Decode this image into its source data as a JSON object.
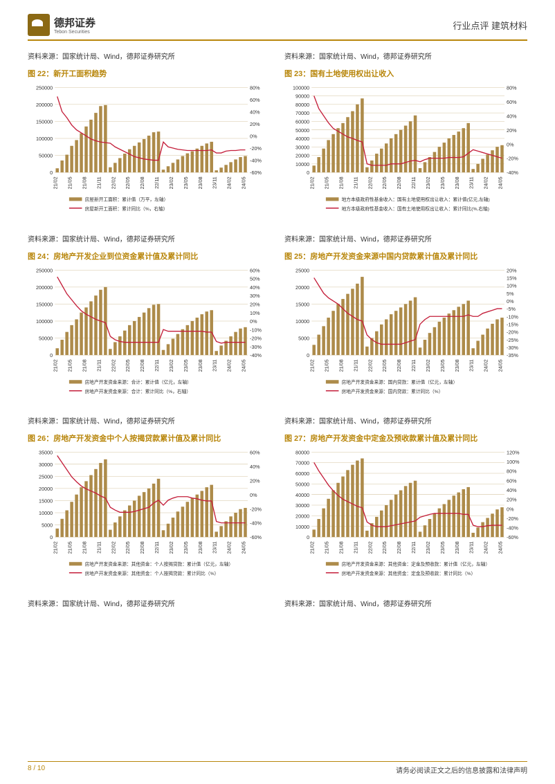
{
  "header": {
    "company": "德邦证券",
    "company_en": "Tebon Securities",
    "category": "行业点评  建筑材料"
  },
  "footer": {
    "page": "8 / 10",
    "disclaimer": "请务必阅读正文之后的信息披露和法律声明"
  },
  "source": "资料来源：国家统计局、Wind，德邦证券研究所",
  "charts": [
    {
      "id": "c22",
      "title": "图 22：新开工面积趋势",
      "left_max": 250000,
      "left_step": 50000,
      "right_max": 80,
      "right_min": -60,
      "right_step": 20,
      "legend": [
        "房屋新开工面积：累计值（万平，左轴）",
        "房屋新开工面积：累计同比（%，右轴）"
      ],
      "bars": [
        12000,
        35000,
        52000,
        78000,
        95000,
        115000,
        135000,
        155000,
        175000,
        195000,
        198000,
        15000,
        28000,
        42000,
        55000,
        68000,
        78000,
        88000,
        98000,
        108000,
        118000,
        120000,
        8000,
        18000,
        28000,
        38000,
        48000,
        56000,
        62000,
        70000,
        78000,
        85000,
        90000,
        6000,
        14000,
        22000,
        30000,
        38000,
        45000,
        48000
      ],
      "line": [
        65,
        40,
        30,
        18,
        10,
        5,
        0,
        -5,
        -8,
        -10,
        -11,
        -12,
        -18,
        -22,
        -26,
        -30,
        -34,
        -36,
        -38,
        -39,
        -40,
        -40,
        -10,
        -18,
        -20,
        -22,
        -23,
        -24,
        -24,
        -24,
        -24,
        -24,
        -23,
        -28,
        -28,
        -25,
        -24,
        -24,
        -23,
        -23
      ]
    },
    {
      "id": "c23",
      "title": "图 23：国有土地使用权出让收入",
      "left_max": 100000,
      "left_step": 10000,
      "right_max": 80,
      "right_min": -40,
      "right_step": 20,
      "legend": [
        "地方本级政府性基金收入：国有土地使用权出让收入：累计值(亿元,左轴)",
        "地方本级政府性基金收入：国有土地使用权出让收入：累计同比(%,右轴)"
      ],
      "bars": [
        8000,
        18000,
        28000,
        38000,
        45000,
        52000,
        58000,
        65000,
        72000,
        80000,
        87000,
        6000,
        14000,
        22000,
        28000,
        34000,
        40000,
        45000,
        50000,
        55000,
        60000,
        67000,
        5000,
        12000,
        18000,
        24000,
        30000,
        35000,
        40000,
        44000,
        48000,
        52000,
        58000,
        4000,
        10000,
        16000,
        21000,
        26000,
        30000,
        32000
      ],
      "line": [
        68,
        50,
        40,
        30,
        22,
        18,
        14,
        10,
        8,
        5,
        3,
        -28,
        -30,
        -30,
        -30,
        -30,
        -28,
        -28,
        -28,
        -26,
        -24,
        -23,
        -25,
        -22,
        -20,
        -20,
        -20,
        -20,
        -19,
        -19,
        -19,
        -18,
        -13,
        -8,
        -10,
        -12,
        -14,
        -16,
        -18,
        -20
      ]
    },
    {
      "id": "c24",
      "title": "图 24：房地产开发企业到位资金累计值及累计同比",
      "left_max": 250000,
      "left_step": 50000,
      "right_max": 60,
      "right_min": -40,
      "right_step": 10,
      "legend": [
        "房地产开发资金来源：合计：累计值（亿元，左轴）",
        "房地产开发资金来源：合计：累计同比（%，右轴）"
      ],
      "bars": [
        20000,
        45000,
        68000,
        88000,
        105000,
        125000,
        140000,
        158000,
        175000,
        192000,
        200000,
        18000,
        38000,
        55000,
        72000,
        88000,
        100000,
        112000,
        125000,
        138000,
        148000,
        150000,
        15000,
        32000,
        48000,
        62000,
        76000,
        88000,
        100000,
        110000,
        120000,
        128000,
        132000,
        12000,
        28000,
        42000,
        55000,
        68000,
        78000,
        82000
      ],
      "line": [
        52,
        42,
        32,
        25,
        18,
        12,
        8,
        5,
        2,
        0,
        -2,
        -18,
        -22,
        -24,
        -25,
        -25,
        -25,
        -25,
        -25,
        -25,
        -25,
        -25,
        -10,
        -12,
        -12,
        -12,
        -12,
        -12,
        -12,
        -12,
        -12,
        -13,
        -13,
        -24,
        -26,
        -25,
        -25,
        -25,
        -25,
        -25
      ]
    },
    {
      "id": "c25",
      "title": "图 25：房地产开发资金来源中国内贷款累计值及累计同比",
      "left_max": 25000,
      "left_step": 5000,
      "right_max": 20,
      "right_min": -35,
      "right_step": 5,
      "legend": [
        "房地产开发资金来源：国内贷款：累计值（亿元，左轴）",
        "房地产开发资金来源：国内贷款：累计同比（%）"
      ],
      "bars": [
        3000,
        6000,
        8500,
        11000,
        13000,
        15000,
        16500,
        18000,
        19500,
        21000,
        23000,
        2500,
        5000,
        7000,
        9000,
        10500,
        12000,
        13000,
        14000,
        15000,
        16000,
        17000,
        2200,
        4500,
        6500,
        8200,
        9800,
        11000,
        12200,
        13200,
        14200,
        15000,
        16000,
        2000,
        4200,
        6000,
        7800,
        9200,
        10500,
        11000
      ],
      "line": [
        15,
        10,
        5,
        2,
        0,
        -2,
        -5,
        -8,
        -10,
        -12,
        -13,
        -22,
        -25,
        -27,
        -28,
        -28,
        -28,
        -28,
        -28,
        -27,
        -26,
        -25,
        -15,
        -12,
        -10,
        -10,
        -10,
        -10,
        -10,
        -10,
        -10,
        -10,
        -9,
        -10,
        -10,
        -8,
        -7,
        -6,
        -5,
        -5
      ]
    },
    {
      "id": "c26",
      "title": "图 26：房地产开发资金中个人按揭贷款累计值及累计同比",
      "left_max": 35000,
      "left_step": 5000,
      "right_max": 60,
      "right_min": -60,
      "right_step": 20,
      "legend": [
        "房地产开发资金来源：其他资金：个人按揭贷款：累计值（亿元，左轴）",
        "房地产开发资金来源：其他资金：个人按揭贷款：累计同比（%）"
      ],
      "bars": [
        3500,
        7500,
        11000,
        14500,
        17500,
        20500,
        23000,
        25500,
        28000,
        30500,
        32000,
        3000,
        6000,
        8500,
        11000,
        13000,
        15000,
        17000,
        18500,
        20000,
        22000,
        24000,
        2800,
        5500,
        8000,
        10500,
        12500,
        14500,
        16000,
        17500,
        19000,
        20500,
        21500,
        2200,
        4500,
        6500,
        8500,
        10000,
        11500,
        12000
      ],
      "line": [
        55,
        45,
        35,
        25,
        18,
        12,
        8,
        5,
        2,
        -2,
        -5,
        -18,
        -22,
        -25,
        -25,
        -25,
        -24,
        -22,
        -20,
        -18,
        -12,
        -8,
        -15,
        -8,
        -5,
        -3,
        -3,
        -3,
        -5,
        -6,
        -8,
        -9,
        -9,
        -38,
        -40,
        -40,
        -40,
        -40,
        -40,
        -40
      ]
    },
    {
      "id": "c27",
      "title": "图 27：房地产开发资金中定金及预收款累计值及累计同比",
      "left_max": 80000,
      "left_step": 10000,
      "right_max": 120,
      "right_min": -60,
      "right_step": 20,
      "legend": [
        "房地产开发资金来源：其他资金：定金及预收款：累计值（亿元，左轴）",
        "房地产开发资金来源：其他资金：定金及预收款：累计同比（%）"
      ],
      "bars": [
        7000,
        17000,
        27000,
        36000,
        44000,
        51000,
        57000,
        63000,
        68000,
        72000,
        74000,
        6000,
        13000,
        19000,
        25000,
        30000,
        35000,
        40000,
        44000,
        48000,
        51000,
        53000,
        5000,
        11000,
        17000,
        22000,
        27000,
        31000,
        35000,
        39000,
        42000,
        45000,
        47000,
        4000,
        9000,
        14000,
        18000,
        22000,
        26000,
        28000
      ],
      "line": [
        98,
        80,
        65,
        50,
        38,
        28,
        20,
        15,
        10,
        5,
        2,
        -28,
        -35,
        -38,
        -38,
        -38,
        -36,
        -34,
        -32,
        -30,
        -28,
        -26,
        -18,
        -15,
        -12,
        -10,
        -10,
        -10,
        -10,
        -10,
        -10,
        -12,
        -12,
        -35,
        -38,
        -38,
        -36,
        -35,
        -35,
        -35
      ]
    }
  ],
  "xlabels": [
    "21/02",
    "21/05",
    "21/08",
    "21/11",
    "22/02",
    "22/05",
    "22/08",
    "22/11",
    "23/02",
    "23/05",
    "23/08",
    "23/11",
    "24/02",
    "24/05"
  ],
  "colors": {
    "bar": "#ad8b4a",
    "line": "#c41e3a",
    "grid": "#d4c4a0",
    "title": "#b8860b",
    "text": "#333"
  }
}
